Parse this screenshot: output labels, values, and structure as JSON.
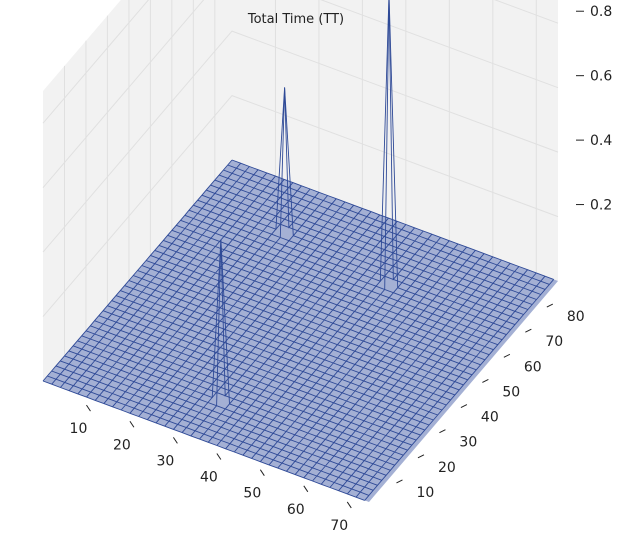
{
  "chart_data": {
    "type": "surface3d",
    "title": "Total Time (TT)",
    "xlabel": "",
    "ylabel": "",
    "zlabel": "",
    "x_ticks": [
      "10",
      "20",
      "30",
      "40",
      "50",
      "60",
      "70"
    ],
    "y_ticks": [
      "10",
      "20",
      "30",
      "40",
      "50",
      "60",
      "70",
      "80"
    ],
    "z_ticks": [
      "0.2",
      "0.4",
      "0.6",
      "0.8"
    ],
    "x_range": [
      0,
      75
    ],
    "y_range": [
      0,
      88
    ],
    "z_range": [
      0,
      0.9
    ],
    "base_value": 0,
    "grid": true,
    "colors": {
      "wire": "#2f4a97",
      "pane": "#f2f2f2",
      "grid": "#e0e0e0"
    },
    "peaks": [
      {
        "x": 20,
        "y": 72,
        "z": 0.45
      },
      {
        "x": 46,
        "y": 68,
        "z": 0.9
      },
      {
        "x": 34,
        "y": 14,
        "z": 0.5
      }
    ]
  }
}
